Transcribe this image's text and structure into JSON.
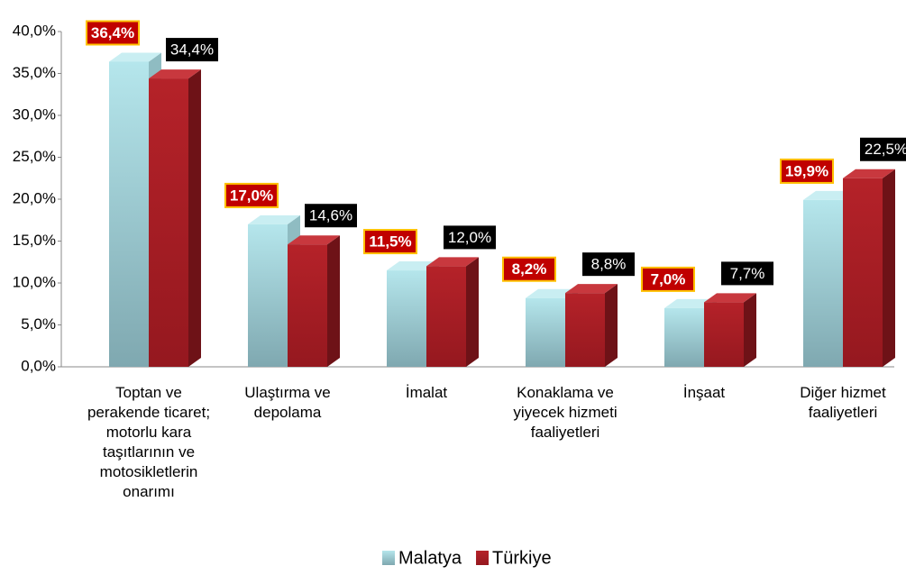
{
  "chart_data": {
    "type": "bar3d",
    "categories": [
      "Toptan ve perakende ticaret; motorlu kara taşıtlarının ve motosikletlerin onarımı",
      "Ulaştırma ve depolama",
      "İmalat",
      "Konaklama ve yiyecek hizmeti faaliyetleri",
      "İnşaat",
      "Diğer hizmet faaliyetleri"
    ],
    "series": [
      {
        "name": "Malatya",
        "color": "#a8dde3",
        "values": [
          36.4,
          17.0,
          11.5,
          8.2,
          7.0,
          19.9
        ],
        "value_labels": [
          "36,4%",
          "17,0%",
          "11,5%",
          "8,2%",
          "7,0%",
          "19,9%"
        ]
      },
      {
        "name": "Türkiye",
        "color": "#a41e25",
        "values": [
          34.4,
          14.6,
          12.0,
          8.8,
          7.7,
          22.5
        ],
        "value_labels": [
          "34,4%",
          "14,6%",
          "12,0%",
          "8,8%",
          "7,7%",
          "22,5%"
        ]
      }
    ],
    "ylim": [
      0,
      40
    ],
    "yticks": [
      {
        "value": 0,
        "label": "0,0%"
      },
      {
        "value": 5,
        "label": "5,0%"
      },
      {
        "value": 10,
        "label": "10,0%"
      },
      {
        "value": 15,
        "label": "15,0%"
      },
      {
        "value": 20,
        "label": "20,0%"
      },
      {
        "value": 25,
        "label": "25,0%"
      },
      {
        "value": 30,
        "label": "30,0%"
      },
      {
        "value": 35,
        "label": "35,0%"
      },
      {
        "value": 40,
        "label": "40,0%"
      }
    ],
    "legend": "bottom"
  }
}
